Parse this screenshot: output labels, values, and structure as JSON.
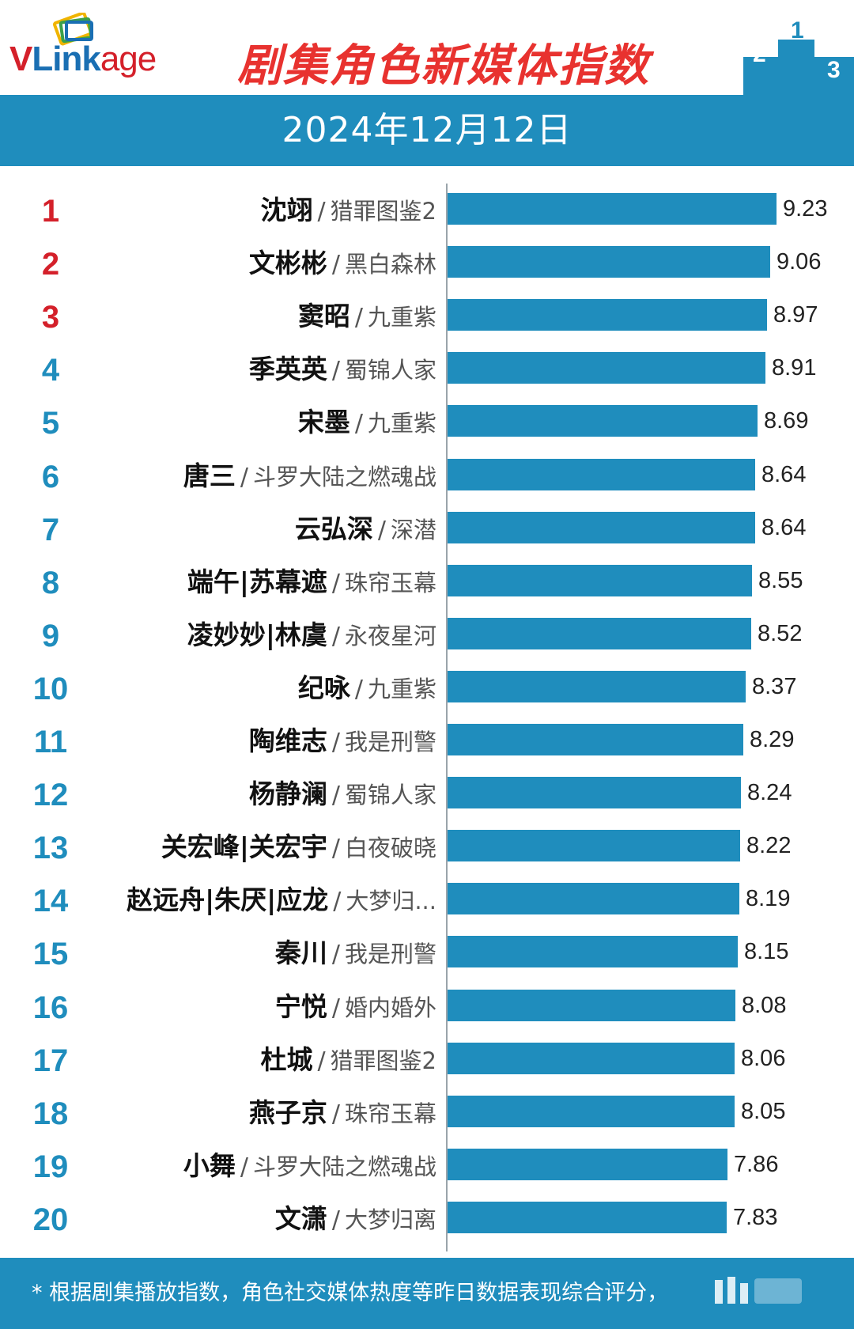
{
  "brand": {
    "logo_text_v": "V",
    "logo_text_link": "Link",
    "logo_text_age": "age"
  },
  "header": {
    "title": "剧集角色新媒体指数",
    "date": "2024年12月12日"
  },
  "footer": {
    "note": "* 根据剧集播放指数，角色社交媒体热度等昨日数据表现综合评分，"
  },
  "colors": {
    "bar": "#1f8dbd",
    "top3_rank": "#d4202a",
    "rank": "#1f8dbd",
    "title": "#e8322f"
  },
  "chart_data": {
    "type": "bar",
    "orientation": "horizontal",
    "title": "剧集角色新媒体指数",
    "subtitle": "2024年12月12日",
    "xlim": [
      0,
      9.23
    ],
    "grid": false,
    "rows": [
      {
        "rank": "1",
        "name": "沈翊",
        "show": "猎罪图鉴2",
        "value": 9.23,
        "label": "9.23"
      },
      {
        "rank": "2",
        "name": "文彬彬",
        "show": "黑白森林",
        "value": 9.06,
        "label": "9.06"
      },
      {
        "rank": "3",
        "name": "窦昭",
        "show": "九重紫",
        "value": 8.97,
        "label": "8.97"
      },
      {
        "rank": "4",
        "name": "季英英",
        "show": "蜀锦人家",
        "value": 8.91,
        "label": "8.91"
      },
      {
        "rank": "5",
        "name": "宋墨",
        "show": "九重紫",
        "value": 8.69,
        "label": "8.69"
      },
      {
        "rank": "6",
        "name": "唐三",
        "show": "斗罗大陆之燃魂战",
        "value": 8.64,
        "label": "8.64"
      },
      {
        "rank": "7",
        "name": "云弘深",
        "show": "深潜",
        "value": 8.64,
        "label": "8.64"
      },
      {
        "rank": "8",
        "name": "端午|苏幕遮",
        "show": "珠帘玉幕",
        "value": 8.55,
        "label": "8.55"
      },
      {
        "rank": "9",
        "name": "凌妙妙|林虞",
        "show": "永夜星河",
        "value": 8.52,
        "label": "8.52"
      },
      {
        "rank": "10",
        "name": "纪咏",
        "show": "九重紫",
        "value": 8.37,
        "label": "8.37"
      },
      {
        "rank": "11",
        "name": "陶维志",
        "show": "我是刑警",
        "value": 8.29,
        "label": "8.29"
      },
      {
        "rank": "12",
        "name": "杨静澜",
        "show": "蜀锦人家",
        "value": 8.24,
        "label": "8.24"
      },
      {
        "rank": "13",
        "name": "关宏峰|关宏宇",
        "show": "白夜破晓",
        "value": 8.22,
        "label": "8.22"
      },
      {
        "rank": "14",
        "name": "赵远舟|朱厌|应龙",
        "show": "大梦归...",
        "value": 8.19,
        "label": "8.19"
      },
      {
        "rank": "15",
        "name": "秦川",
        "show": "我是刑警",
        "value": 8.15,
        "label": "8.15"
      },
      {
        "rank": "16",
        "name": "宁悦",
        "show": "婚内婚外",
        "value": 8.08,
        "label": "8.08"
      },
      {
        "rank": "17",
        "name": "杜城",
        "show": "猎罪图鉴2",
        "value": 8.06,
        "label": "8.06"
      },
      {
        "rank": "18",
        "name": "燕子京",
        "show": "珠帘玉幕",
        "value": 8.05,
        "label": "8.05"
      },
      {
        "rank": "19",
        "name": "小舞",
        "show": "斗罗大陆之燃魂战",
        "value": 7.86,
        "label": "7.86"
      },
      {
        "rank": "20",
        "name": "文潇",
        "show": "大梦归离",
        "value": 7.83,
        "label": "7.83"
      }
    ]
  }
}
